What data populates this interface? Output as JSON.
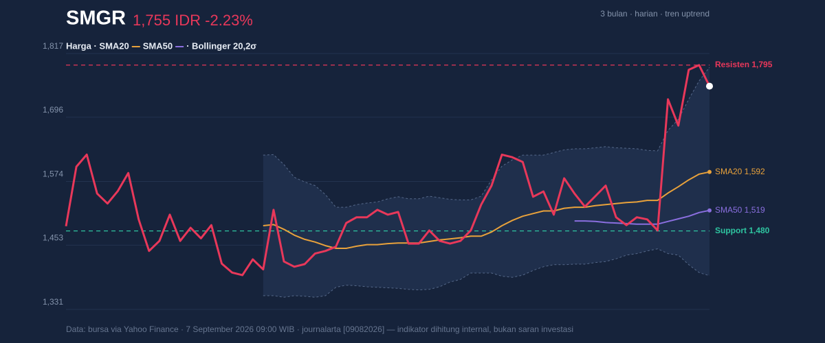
{
  "chart_data": {
    "type": "line",
    "title": "SMGR",
    "subtitle": "1,755 IDR -2.23%",
    "note": "3 bulan · harian · tren uptrend",
    "source": "Data: bursa via Yahoo Finance · 7 September 2026 09:00 WIB · journalarta [09082026] — indikator dihitung internal, bukan saran investasi",
    "legend": [
      "Harga · SMA20",
      "SMA50",
      "· Bollinger 20,2σ"
    ],
    "ylim": [
      1331,
      1817
    ],
    "yticks": [
      {
        "value": 1331,
        "label": "1,331"
      },
      {
        "value": 1453,
        "label": "1,453"
      },
      {
        "value": 1574,
        "label": "1,574"
      },
      {
        "value": 1696,
        "label": "1,696"
      },
      {
        "value": 1817,
        "label": "1,817"
      }
    ],
    "grid": true,
    "series": [
      {
        "color": "#e8385a",
        "values": [
          1489,
          1602,
          1625,
          1551,
          1532,
          1556,
          1590,
          1502,
          1442,
          1461,
          1511,
          1461,
          1486,
          1466,
          1491,
          1418,
          1401,
          1396,
          1426,
          1407,
          1520,
          1422,
          1412,
          1417,
          1437,
          1442,
          1450,
          1495,
          1506,
          1506,
          1520,
          1511,
          1516,
          1456,
          1456,
          1481,
          1461,
          1456,
          1461,
          1481,
          1530,
          1566,
          1625,
          1620,
          1611,
          1545,
          1555,
          1511,
          1580,
          1551,
          1526,
          1546,
          1566,
          1506,
          1491,
          1506,
          1502,
          1481,
          1730,
          1680,
          1786,
          1795,
          1755
        ]
      },
      {
        "color": "#e9a23b",
        "label": "SMA20 1,592",
        "values": [
          null,
          null,
          null,
          null,
          null,
          null,
          null,
          null,
          null,
          null,
          null,
          null,
          null,
          null,
          null,
          null,
          null,
          null,
          null,
          1490,
          1492,
          1483,
          1472,
          1464,
          1459,
          1452,
          1447,
          1447,
          1451,
          1454,
          1454,
          1456,
          1457,
          1457,
          1457,
          1460,
          1463,
          1465,
          1467,
          1470,
          1470,
          1478,
          1490,
          1500,
          1508,
          1513,
          1518,
          1518,
          1523,
          1525,
          1525,
          1528,
          1530,
          1532,
          1534,
          1535,
          1538,
          1538,
          1552,
          1564,
          1577,
          1588,
          1592
        ]
      },
      {
        "color": "#8b6fe0",
        "label": "SMA50 1,519",
        "values": [
          null,
          null,
          null,
          null,
          null,
          null,
          null,
          null,
          null,
          null,
          null,
          null,
          null,
          null,
          null,
          null,
          null,
          null,
          null,
          null,
          null,
          null,
          null,
          null,
          null,
          null,
          null,
          null,
          null,
          null,
          null,
          null,
          null,
          null,
          null,
          null,
          null,
          null,
          null,
          null,
          null,
          null,
          null,
          null,
          null,
          null,
          null,
          null,
          null,
          1499,
          1499,
          1498,
          1496,
          1495,
          1494,
          1493,
          1493,
          1493,
          1498,
          1503,
          1508,
          1515,
          1519
        ]
      }
    ],
    "bands": {
      "color": "#56698a",
      "fill": "#1f2f4c",
      "upper": [
        null,
        null,
        null,
        null,
        null,
        null,
        null,
        null,
        null,
        null,
        null,
        null,
        null,
        null,
        null,
        null,
        null,
        null,
        null,
        1624,
        1625,
        1606,
        1582,
        1573,
        1566,
        1549,
        1525,
        1525,
        1530,
        1533,
        1535,
        1541,
        1545,
        1541,
        1541,
        1546,
        1543,
        1540,
        1539,
        1539,
        1546,
        1577,
        1603,
        1615,
        1624,
        1624,
        1624,
        1629,
        1634,
        1636,
        1636,
        1638,
        1640,
        1638,
        1637,
        1636,
        1633,
        1632,
        1671,
        1692,
        1730,
        1765,
        1791
      ],
      "lower": [
        null,
        null,
        null,
        null,
        null,
        null,
        null,
        null,
        null,
        null,
        null,
        null,
        null,
        null,
        null,
        null,
        null,
        null,
        null,
        1357,
        1357,
        1354,
        1357,
        1356,
        1354,
        1357,
        1373,
        1377,
        1376,
        1374,
        1373,
        1372,
        1371,
        1369,
        1368,
        1369,
        1374,
        1383,
        1388,
        1400,
        1400,
        1400,
        1394,
        1392,
        1396,
        1405,
        1412,
        1416,
        1416,
        1417,
        1417,
        1420,
        1422,
        1427,
        1434,
        1437,
        1442,
        1446,
        1437,
        1434,
        1416,
        1401,
        1395
      ]
    },
    "hlines": [
      {
        "value": 1795,
        "label": "Resisten 1,795",
        "color": "#e8375a"
      },
      {
        "value": 1480,
        "label": "Support 1,480",
        "color": "#2ec4a0"
      }
    ]
  }
}
